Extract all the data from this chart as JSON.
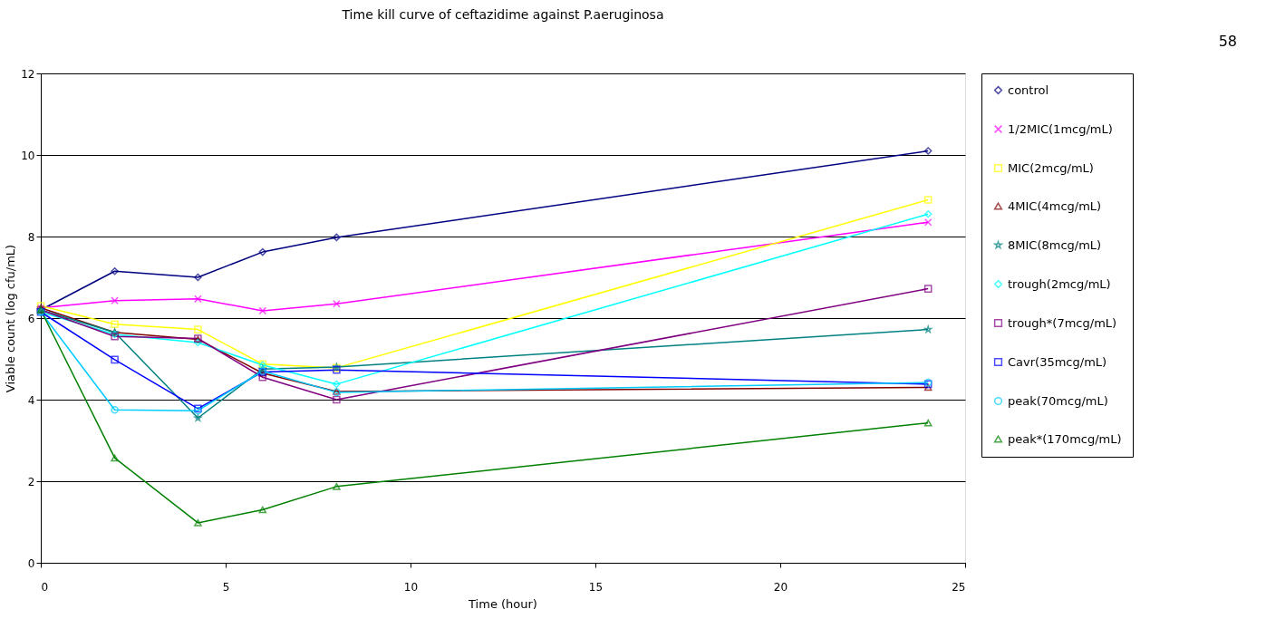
{
  "chart_data": {
    "type": "line",
    "title": "Time kill curve of ceftazidime against P.aeruginosa",
    "xlabel": "Time (hour)",
    "ylabel": "Viable count (log cfu/mL)",
    "annotations": [
      "58"
    ],
    "x": [
      0,
      2,
      4.25,
      6,
      8,
      24
    ],
    "series": [
      {
        "name": "control",
        "color": "#000080",
        "marker": "diamond",
        "values": [
          6.2,
          7.15,
          7.0,
          7.62,
          7.98,
          10.1
        ]
      },
      {
        "name": "1/2MIC(1mcg/mL)",
        "color": "#ff00ff",
        "marker": "cross",
        "values": [
          6.25,
          6.43,
          6.47,
          6.18,
          6.35,
          8.35
        ]
      },
      {
        "name": "MIC(2mcg/mL)",
        "color": "#ffff00",
        "marker": "square",
        "values": [
          6.3,
          5.85,
          5.72,
          4.87,
          4.78,
          8.9
        ]
      },
      {
        "name": "4MIC(4mcg/mL)",
        "color": "#800000",
        "marker": "triangle",
        "values": [
          6.25,
          5.65,
          5.48,
          4.65,
          4.2,
          4.3
        ]
      },
      {
        "name": "8MIC(8mcg/mL)",
        "color": "#008080",
        "marker": "star",
        "values": [
          6.2,
          5.65,
          3.55,
          4.75,
          4.8,
          5.72
        ]
      },
      {
        "name": "trough(2mcg/mL)",
        "color": "#00ffff",
        "marker": "diamond",
        "values": [
          6.15,
          5.6,
          5.4,
          4.85,
          4.38,
          8.55
        ]
      },
      {
        "name": "trough*(7mcg/mL)",
        "color": "#800080",
        "marker": "square",
        "values": [
          6.2,
          5.55,
          5.5,
          4.55,
          4.0,
          6.72
        ]
      },
      {
        "name": "Cavr(35mcg/mL)",
        "color": "#0000ff",
        "marker": "square",
        "values": [
          6.15,
          4.98,
          3.78,
          4.68,
          4.73,
          4.38
        ]
      },
      {
        "name": "peak(70mcg/mL)",
        "color": "#00ccff",
        "marker": "circle",
        "values": [
          6.15,
          3.75,
          3.73,
          4.7,
          4.18,
          4.42
        ]
      },
      {
        "name": "peak*(170mcg/mL)",
        "color": "#008000",
        "marker": "triangle",
        "values": [
          6.2,
          2.57,
          0.98,
          1.3,
          1.87,
          3.43
        ]
      }
    ],
    "xlim": [
      0,
      25
    ],
    "xticks": [
      0,
      5,
      10,
      15,
      20,
      25
    ],
    "ylim": [
      0,
      12
    ],
    "yticks": [
      0,
      2,
      4,
      6,
      8,
      10,
      12
    ],
    "grid": "y",
    "legend": "right",
    "line_style": "solid"
  }
}
